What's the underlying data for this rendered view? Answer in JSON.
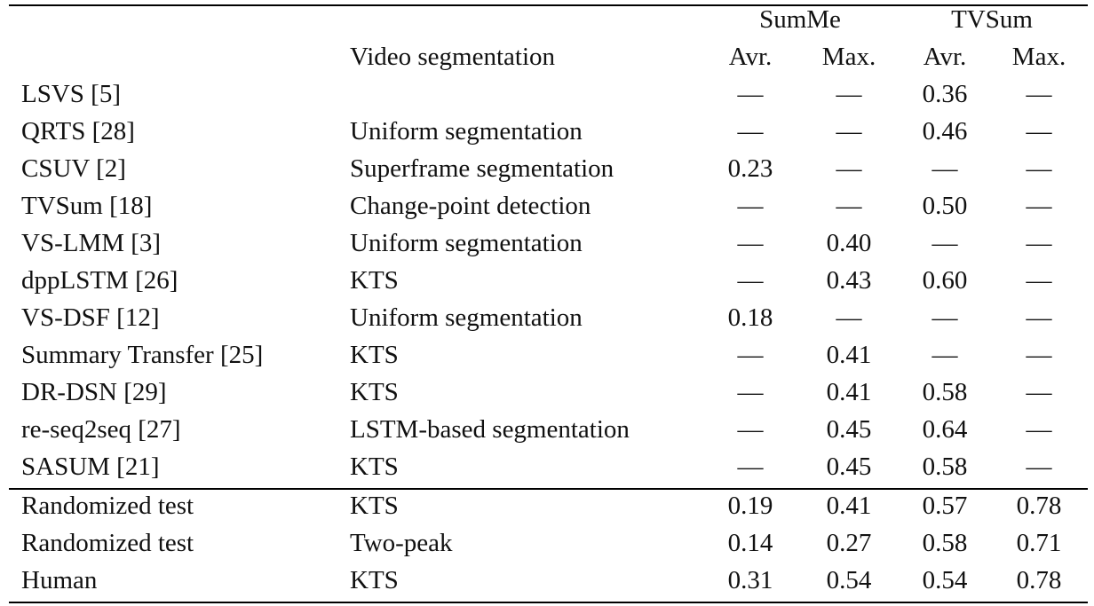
{
  "header": {
    "summe": "SumMe",
    "tvsum": "TVSum",
    "segmentation": "Video segmentation",
    "summe_avr": "Avr.",
    "summe_max": "Max.",
    "tvsum_avr": "Avr.",
    "tvsum_max": "Max."
  },
  "rows": [
    {
      "method": "LSVS [5]",
      "seg": "",
      "summe_avr": "—",
      "summe_max": "—",
      "tvsum_avr": "0.36",
      "tvsum_max": "—"
    },
    {
      "method": "QRTS [28]",
      "seg": "Uniform segmentation",
      "summe_avr": "—",
      "summe_max": "—",
      "tvsum_avr": "0.46",
      "tvsum_max": "—"
    },
    {
      "method": "CSUV [2]",
      "seg": "Superframe segmentation",
      "summe_avr": "0.23",
      "summe_max": "—",
      "tvsum_avr": "—",
      "tvsum_max": "—"
    },
    {
      "method": "TVSum [18]",
      "seg": "Change-point detection",
      "summe_avr": "—",
      "summe_max": "—",
      "tvsum_avr": "0.50",
      "tvsum_max": "—"
    },
    {
      "method": "VS-LMM [3]",
      "seg": "Uniform segmentation",
      "summe_avr": "—",
      "summe_max": "0.40",
      "tvsum_avr": "—",
      "tvsum_max": "—"
    },
    {
      "method": "dppLSTM [26]",
      "seg": "KTS",
      "summe_avr": "—",
      "summe_max": "0.43",
      "tvsum_avr": "0.60",
      "tvsum_max": "—"
    },
    {
      "method": "VS-DSF [12]",
      "seg": "Uniform segmentation",
      "summe_avr": "0.18",
      "summe_max": "—",
      "tvsum_avr": "—",
      "tvsum_max": "—"
    },
    {
      "method": "Summary Transfer [25]",
      "seg": "KTS",
      "summe_avr": "—",
      "summe_max": "0.41",
      "tvsum_avr": "—",
      "tvsum_max": "—"
    },
    {
      "method": "DR-DSN [29]",
      "seg": "KTS",
      "summe_avr": "—",
      "summe_max": "0.41",
      "tvsum_avr": "0.58",
      "tvsum_max": "—"
    },
    {
      "method": "re-seq2seq [27]",
      "seg": "LSTM-based segmentation",
      "summe_avr": "—",
      "summe_max": "0.45",
      "tvsum_avr": "0.64",
      "tvsum_max": "—"
    },
    {
      "method": "SASUM [21]",
      "seg": "KTS",
      "summe_avr": "—",
      "summe_max": "0.45",
      "tvsum_avr": "0.58",
      "tvsum_max": "—"
    },
    {
      "method": "Randomized test",
      "seg": "KTS",
      "summe_avr": "0.19",
      "summe_max": "0.41",
      "tvsum_avr": "0.57",
      "tvsum_max": "0.78"
    },
    {
      "method": "Randomized test",
      "seg": "Two-peak",
      "summe_avr": "0.14",
      "summe_max": "0.27",
      "tvsum_avr": "0.58",
      "tvsum_max": "0.71"
    },
    {
      "method": "Human",
      "seg": "KTS",
      "summe_avr": "0.31",
      "summe_max": "0.54",
      "tvsum_avr": "0.54",
      "tvsum_max": "0.78"
    }
  ]
}
